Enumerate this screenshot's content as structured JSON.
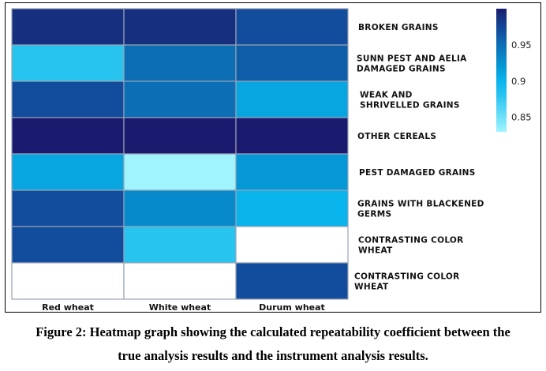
{
  "chart_data": {
    "type": "heatmap",
    "title": "",
    "xlabel": "",
    "ylabel": "",
    "columns": [
      "Red wheat",
      "White wheat",
      "Durum wheat"
    ],
    "rows": [
      "BROKEN GRAINS",
      "SUNN PEST AND AELIA DAMAGED GRAINS",
      "WEAK AND SHRIVELLED GRAINS",
      "OTHER CEREALS",
      "PEST DAMAGED GRAINS",
      "GRAINS WITH BLACKENED GERMS",
      "CONTRASTING COLOR WHEAT",
      "CONTRASTING COLOR WHEAT"
    ],
    "row_label_lines": [
      [
        "BROKEN GRAINS"
      ],
      [
        "SUNN PEST AND AELIA",
        "DAMAGED GRAINS"
      ],
      [
        "WEAK AND",
        "SHRIVELLED GRAINS"
      ],
      [
        "OTHER CEREALS"
      ],
      [
        "PEST DAMAGED GRAINS"
      ],
      [
        "GRAINS WITH BLACKENED",
        "GERMS"
      ],
      [
        "CONTRASTING COLOR",
        "WHEAT"
      ],
      [
        "CONTRASTING COLOR",
        "WHEAT"
      ]
    ],
    "values": [
      [
        0.99,
        0.99,
        0.97
      ],
      [
        0.88,
        0.95,
        0.96
      ],
      [
        0.97,
        0.95,
        0.91
      ],
      [
        1.0,
        1.0,
        1.0
      ],
      [
        0.91,
        0.83,
        0.92
      ],
      [
        0.97,
        0.93,
        0.9
      ],
      [
        0.97,
        0.88,
        null
      ],
      [
        null,
        null,
        0.97
      ]
    ],
    "missing_color": "#ffffff",
    "colorbar": {
      "range": [
        0.83,
        1.0
      ],
      "ticks": [
        0.85,
        0.9,
        0.95
      ],
      "tick_labels": [
        "0.85",
        "0.9",
        "0.95"
      ],
      "placement": "right",
      "stops": [
        {
          "value": 0.83,
          "color": "#a0f4fd"
        },
        {
          "value": 0.88,
          "color": "#28c4f0"
        },
        {
          "value": 0.9,
          "color": "#09b4ec"
        },
        {
          "value": 0.92,
          "color": "#0498d6"
        },
        {
          "value": 0.95,
          "color": "#0c6fb5"
        },
        {
          "value": 0.97,
          "color": "#124c9c"
        },
        {
          "value": 0.99,
          "color": "#16307f"
        },
        {
          "value": 1.0,
          "color": "#1a1a6e"
        }
      ]
    },
    "grid_line_color": "#9aa3b5"
  },
  "caption": {
    "line1": "Figure 2: Heatmap graph showing the calculated repeatability coefficient between the",
    "line2": "true analysis results and the instrument analysis results."
  }
}
